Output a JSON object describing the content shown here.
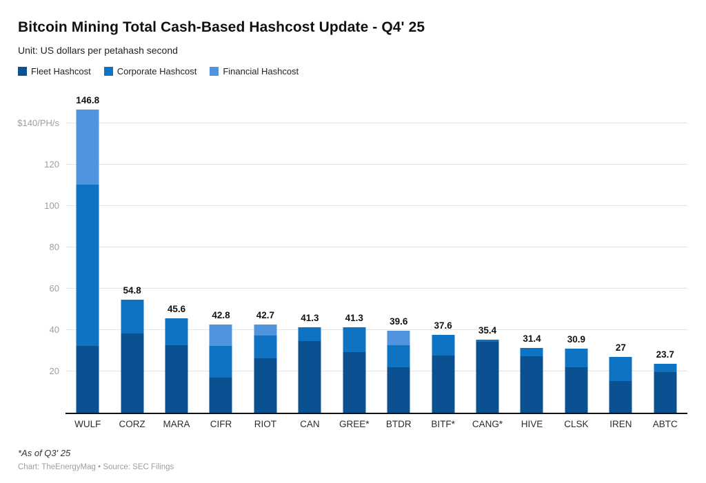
{
  "header": {
    "title": "Bitcoin Mining Total Cash-Based Hashcost Update - Q4' 25",
    "subtitle": "Unit: US dollars per petahash second"
  },
  "legend": [
    {
      "label": "Fleet Hashcost",
      "color": "#0b5191"
    },
    {
      "label": "Corporate Hashcost",
      "color": "#0e73c2"
    },
    {
      "label": "Financial Hashcost",
      "color": "#5094dd"
    }
  ],
  "chart_data": {
    "type": "bar",
    "stacked": true,
    "title": "Bitcoin Mining Total Cash-Based Hashcost Update - Q4' 25",
    "subtitle": "Unit: US dollars per petahash second",
    "ylabel": "US dollars per petahash second",
    "xlabel": "",
    "categories": [
      "WULF",
      "CORZ",
      "MARA",
      "CIFR",
      "RIOT",
      "CAN",
      "GREE*",
      "BTDR",
      "BITF*",
      "CANG*",
      "HIVE",
      "CLSK",
      "IREN",
      "ABTC"
    ],
    "series": [
      {
        "name": "Fleet Hashcost",
        "color": "#0b5191",
        "values": [
          32.5,
          38.5,
          32.6,
          17.0,
          26.5,
          34.8,
          29.5,
          22.0,
          27.6,
          34.4,
          27.2,
          22.0,
          15.3,
          19.7
        ]
      },
      {
        "name": "Corporate Hashcost",
        "color": "#0e73c2",
        "values": [
          78.0,
          16.3,
          13.0,
          15.3,
          11.0,
          6.5,
          11.8,
          10.6,
          10.0,
          1.0,
          4.2,
          8.9,
          11.7,
          4.0
        ]
      },
      {
        "name": "Financial Hashcost",
        "color": "#5094dd",
        "values": [
          36.3,
          0,
          0,
          10.5,
          5.2,
          0,
          0,
          7.0,
          0,
          0,
          0,
          0,
          0,
          0
        ]
      }
    ],
    "totals": [
      146.8,
      54.8,
      45.6,
      42.8,
      42.7,
      41.3,
      41.3,
      39.6,
      37.6,
      35.4,
      31.4,
      30.9,
      27,
      23.7
    ],
    "total_labels": [
      "146.8",
      "54.8",
      "45.6",
      "42.8",
      "42.7",
      "41.3",
      "41.3",
      "39.6",
      "37.6",
      "35.4",
      "31.4",
      "30.9",
      "27",
      "23.7"
    ],
    "y_axis": {
      "ticks": [
        20,
        40,
        60,
        80,
        100,
        120,
        140
      ],
      "tick_labels": [
        "20",
        "40",
        "60",
        "80",
        "100",
        "120",
        "$140/PH/s"
      ],
      "range": [
        0,
        147.3
      ]
    },
    "grid": "horizontal",
    "legend_position": "top"
  },
  "footer": {
    "note": "*As of Q3' 25",
    "credit": "Chart: TheEnergyMag • Source: SEC Filings"
  }
}
